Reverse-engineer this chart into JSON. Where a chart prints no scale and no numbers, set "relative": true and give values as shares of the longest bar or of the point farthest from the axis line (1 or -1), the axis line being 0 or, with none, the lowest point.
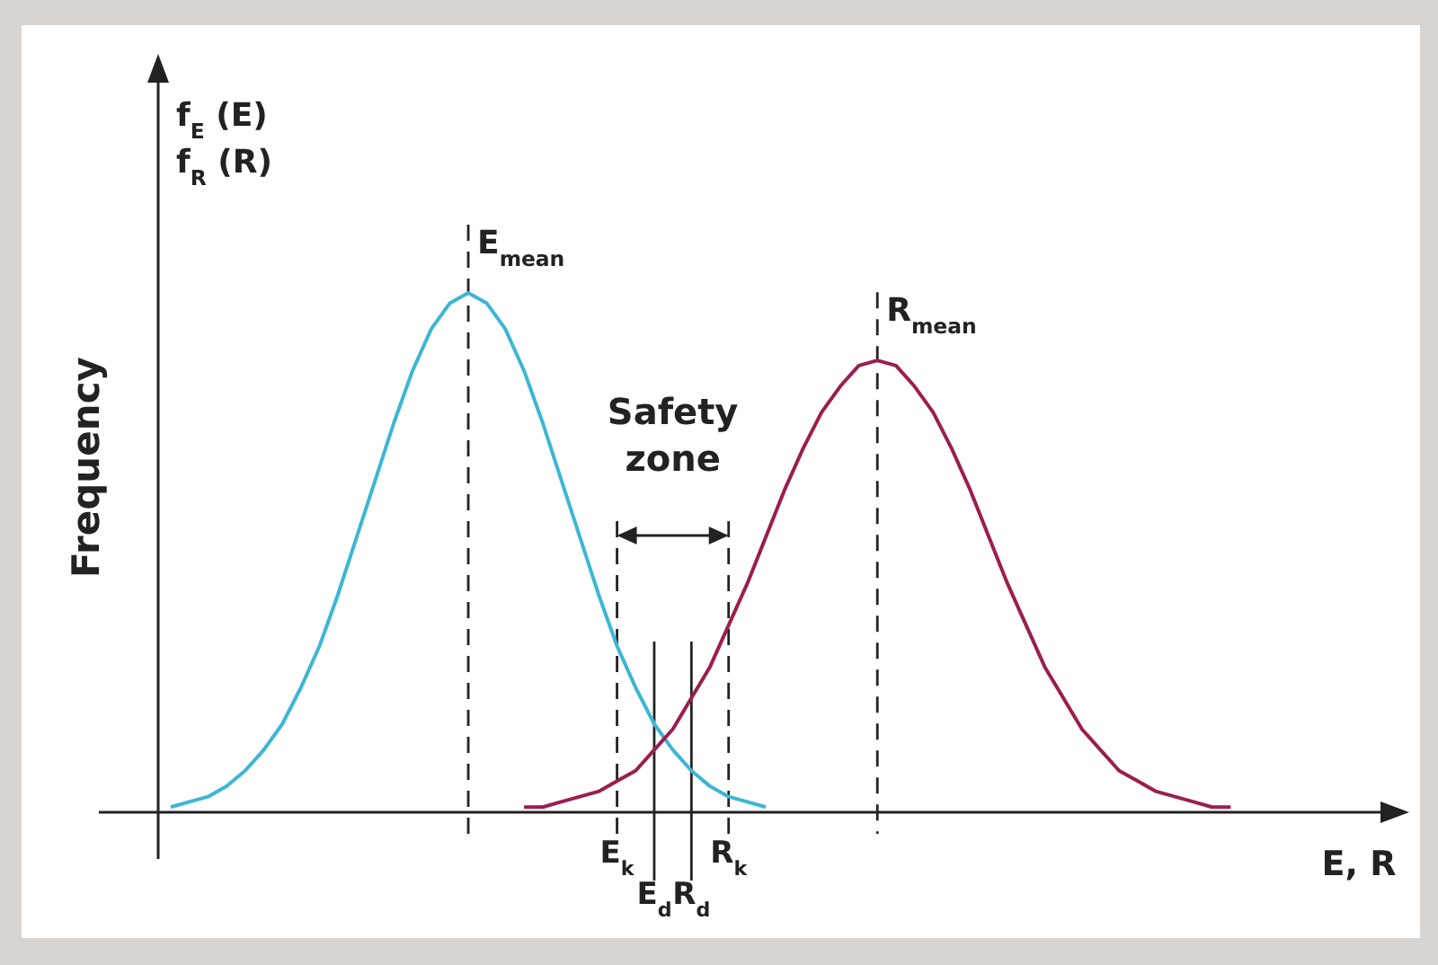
{
  "chart_data": {
    "type": "line",
    "relative": true,
    "ylabel": "Frequency",
    "xlabel": "E, R",
    "tick_labels": "x",
    "line_style": "solid",
    "categories": [
      null,
      null,
      null,
      null,
      null,
      null,
      null,
      null,
      null,
      null,
      null,
      null,
      null,
      null,
      null,
      null,
      null,
      null,
      null,
      null,
      null,
      null,
      null,
      null,
      "E$_{k}$",
      null,
      "E$_{d}$",
      null,
      "R$_{d}$",
      null,
      "R$_{k}$",
      null,
      null,
      null,
      null,
      null,
      null,
      null,
      null,
      null,
      null,
      null,
      null,
      null,
      null,
      null,
      null,
      null,
      null,
      null,
      null,
      null,
      null,
      null,
      null,
      null,
      null,
      null,
      null
    ],
    "annotations": [
      "f$_{E}$ (E)",
      "f$_{R}$ (R)",
      "Safety zone"
    ],
    "series": [
      {
        "color": "#3db6d3",
        "values": [
          0.01,
          0.02,
          0.03,
          0.05,
          0.08,
          0.12,
          0.17,
          0.24,
          0.32,
          0.42,
          0.53,
          0.64,
          0.75,
          0.85,
          0.93,
          0.98,
          1,
          0.98,
          0.93,
          0.85,
          0.75,
          0.64,
          0.53,
          0.42,
          0.32,
          0.24,
          0.17,
          0.12,
          0.08,
          0.05,
          0.03,
          0.02,
          0.01,
          null,
          null,
          null,
          null,
          null,
          null,
          null,
          null,
          null,
          null,
          null,
          null,
          null,
          null,
          null,
          null,
          null,
          null,
          null,
          null,
          null,
          null,
          null,
          null,
          null,
          null
        ]
      },
      {
        "color": "#9b1e4f",
        "values": [
          null,
          null,
          null,
          null,
          null,
          null,
          null,
          null,
          null,
          null,
          null,
          null,
          null,
          null,
          null,
          null,
          null,
          null,
          null,
          0.01,
          0.01,
          0.02,
          0.03,
          0.04,
          0.06,
          0.08,
          0.12,
          0.16,
          0.22,
          0.28,
          0.36,
          0.44,
          0.53,
          0.62,
          0.7,
          0.77,
          0.82,
          0.86,
          0.87,
          0.86,
          0.82,
          0.77,
          0.7,
          0.62,
          0.53,
          0.44,
          0.36,
          0.28,
          0.22,
          0.16,
          0.12,
          0.08,
          0.06,
          0.04,
          0.03,
          0.02,
          0.01,
          0.01,
          null
        ]
      }
    ],
    "ref_lines": [
      {
        "axis": "x",
        "label": "E$_{mean}$",
        "line_style": "dashed",
        "color": "#222222"
      },
      {
        "axis": "x",
        "label": "R$_{mean}$",
        "line_style": "dashed",
        "color": "#222222"
      },
      {
        "axis": "x",
        "value": "E$_{k}$",
        "line_style": "dashed",
        "color": "#222222"
      },
      {
        "axis": "x",
        "value": "E$_{d}$",
        "line_style": "solid",
        "color": "#222222"
      },
      {
        "axis": "x",
        "value": "R$_{d}$",
        "line_style": "solid",
        "color": "#222222"
      },
      {
        "axis": "x",
        "value": "R$_{k}$",
        "line_style": "dashed",
        "color": "#222222"
      }
    ]
  }
}
